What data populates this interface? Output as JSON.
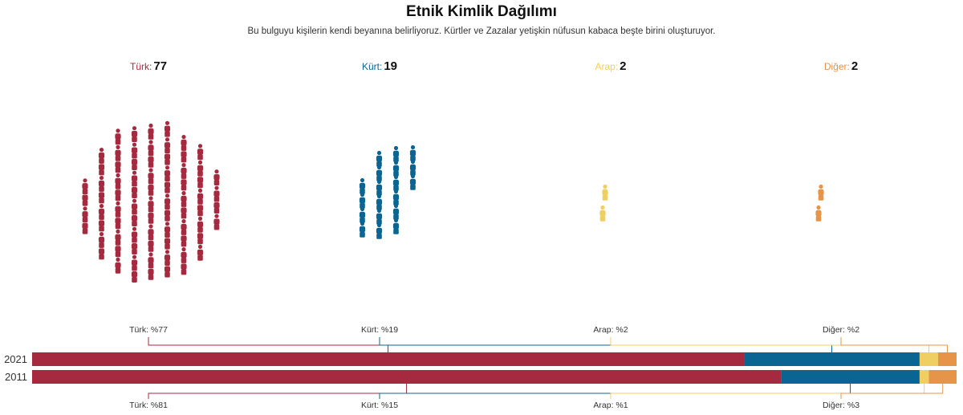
{
  "title": "Etnik Kimlik Dağılımı",
  "subtitle": "Bu bulguyu kişilerin kendi beyanına belirliyoruz. Kürtler ve Zazalar yetişkin nüfusun kabaca beşte birini oluşturuyor.",
  "groups": [
    {
      "key": "turk",
      "label": "Türk:",
      "count": "77",
      "color": "#a52a3f"
    },
    {
      "key": "kurt",
      "label": "Kürt:",
      "count": "19",
      "color": "#0b6593"
    },
    {
      "key": "arap",
      "label": "Arap:",
      "count": "2",
      "color": "#f0cf62"
    },
    {
      "key": "diger",
      "label": "Diğer:",
      "count": "2",
      "color": "#e59448"
    }
  ],
  "chart_data": [
    {
      "type": "pictogram",
      "categories": [
        "Türk",
        "Kürt",
        "Arap",
        "Diğer"
      ],
      "values": [
        77,
        19,
        2,
        2
      ],
      "colors": [
        "#a52a3f",
        "#0b6593",
        "#f0cf62",
        "#e59448"
      ]
    },
    {
      "type": "bar",
      "orientation": "horizontal",
      "stacked": true,
      "normalized": true,
      "categories": [
        "2021",
        "2011"
      ],
      "series": [
        {
          "name": "Türk",
          "values": [
            77,
            81
          ],
          "color": "#a52a3f"
        },
        {
          "name": "Kürt",
          "values": [
            19,
            15
          ],
          "color": "#0b6593"
        },
        {
          "name": "Arap",
          "values": [
            2,
            1
          ],
          "color": "#f0cf62"
        },
        {
          "name": "Diğer",
          "values": [
            2,
            3
          ],
          "color": "#e59448"
        }
      ],
      "top_labels": [
        "Türk: %77",
        "Kürt: %19",
        "Arap: %2",
        "Diğer: %2"
      ],
      "bottom_labels": [
        "Türk: %81",
        "Kürt: %15",
        "Arap: %1",
        "Diğer: %3"
      ]
    }
  ]
}
